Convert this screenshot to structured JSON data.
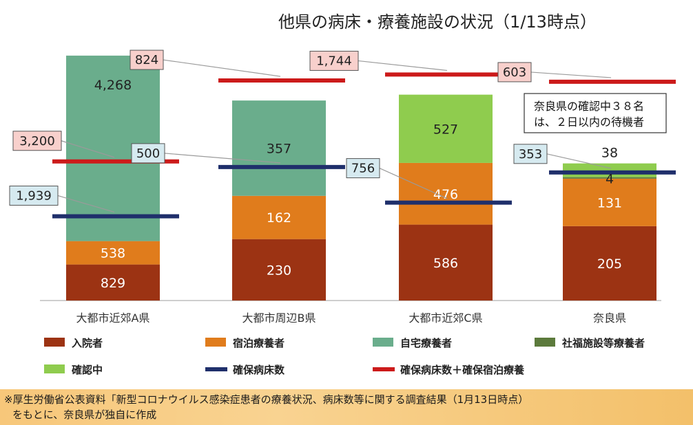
{
  "chart_data": {
    "type": "bar",
    "stacked": true,
    "title": "他県の病床・療養施設の状況（1/13時点）",
    "categories": [
      "大都市近郊A県",
      "大都市周辺B県",
      "大都市近郊C県",
      "奈良県"
    ],
    "series": [
      {
        "name": "入院者",
        "color": "#9c3313",
        "values": [
          829,
          230,
          586,
          205
        ]
      },
      {
        "name": "宿泊療養者",
        "color": "#e07c1c",
        "values": [
          538,
          162,
          476,
          131
        ]
      },
      {
        "name": "自宅療養者",
        "color": "#6aad8c",
        "values": [
          4268,
          357,
          0,
          0
        ]
      },
      {
        "name": "社福施設等療養者",
        "color": "#5c7a3c",
        "values": [
          0,
          0,
          0,
          4
        ]
      },
      {
        "name": "確認中",
        "color": "#8fcc4e",
        "values": [
          0,
          0,
          527,
          38
        ]
      }
    ],
    "lines": [
      {
        "name": "確保病床数",
        "color": "#1f2f6b",
        "values": [
          1939,
          500,
          756,
          353
        ]
      },
      {
        "name": "確保病床数＋確保宿泊療養",
        "color": "#cc1a1a",
        "values": [
          3200,
          824,
          1744,
          603
        ]
      }
    ],
    "value_labels": {
      "入院者": [
        "829",
        "230",
        "586",
        "205"
      ],
      "宿泊療養者": [
        "538",
        "162",
        "476",
        "131"
      ],
      "自宅療養者": [
        "4,268",
        "357",
        "",
        ""
      ],
      "社福施設等療養者": [
        "",
        "",
        "",
        "4"
      ],
      "確認中": [
        "",
        "",
        "527",
        "38"
      ],
      "確保病床数": [
        "1,939",
        "500",
        "756",
        "353"
      ],
      "確保病床数＋確保宿泊療養": [
        "3,200",
        "824",
        "1,744",
        "603"
      ]
    },
    "legend": [
      {
        "label": "入院者",
        "kind": "square",
        "color": "#9c3313"
      },
      {
        "label": "宿泊療養者",
        "kind": "square",
        "color": "#e07c1c"
      },
      {
        "label": "自宅療養者",
        "kind": "square",
        "color": "#6aad8c"
      },
      {
        "label": "社福施設等療養者",
        "kind": "square",
        "color": "#5c7a3c"
      },
      {
        "label": "確認中",
        "kind": "square",
        "color": "#8fcc4e"
      },
      {
        "label": "確保病床数",
        "kind": "line",
        "color": "#1f2f6b"
      },
      {
        "label": "確保病床数＋確保宿泊療養",
        "kind": "line",
        "color": "#cc1a1a"
      }
    ],
    "legend_position": "bottom",
    "grid": false,
    "annotation": [
      "奈良県の確認中３８名",
      "は、２日以内の待機者"
    ]
  },
  "footer": {
    "line1": "※厚生労働省公表資料「新型コロナウイルス感染症患者の療養状況、病床数等に関する調査結果（1月13日時点）",
    "line2": "をもとに、奈良県が独自に作成"
  }
}
